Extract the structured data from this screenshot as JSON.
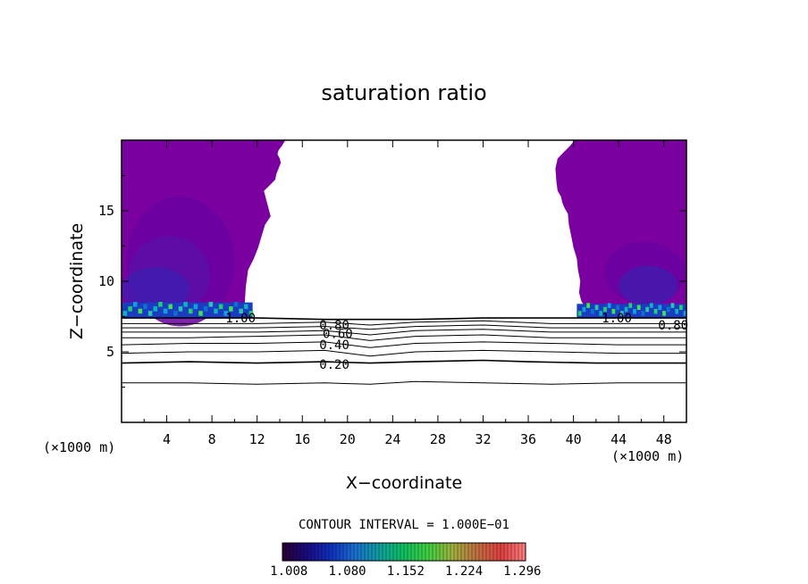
{
  "chart_data": {
    "type": "heatmap",
    "title": "saturation ratio",
    "xlabel": "X−coordinate",
    "ylabel": "Z−coordinate",
    "x_unit": "(×1000 m)",
    "xlim": [
      0,
      50
    ],
    "ylim": [
      0,
      20
    ],
    "x_ticks": [
      4,
      8,
      12,
      16,
      20,
      24,
      28,
      32,
      36,
      40,
      44,
      48
    ],
    "y_ticks": [
      5,
      10,
      15
    ],
    "contour_interval_text": "CONTOUR INTERVAL = 1.000E−01",
    "contour_lines": [
      {
        "level": 0.1,
        "x": [
          0,
          6,
          12,
          18,
          22,
          26,
          32,
          38,
          44,
          50
        ],
        "z": [
          2.8,
          2.8,
          2.7,
          2.8,
          2.7,
          2.9,
          2.8,
          2.7,
          2.8,
          2.8
        ]
      },
      {
        "level": 0.2,
        "x": [
          0,
          6,
          12,
          18,
          22,
          26,
          32,
          36,
          42,
          50
        ],
        "z": [
          4.2,
          4.3,
          4.2,
          4.3,
          4.2,
          4.3,
          4.4,
          4.3,
          4.2,
          4.2
        ]
      },
      {
        "level": 0.3,
        "x": [
          0,
          6,
          12,
          18,
          22,
          26,
          32,
          38,
          44,
          50
        ],
        "z": [
          4.9,
          5.0,
          5.0,
          5.1,
          4.7,
          5.0,
          5.1,
          5.0,
          4.9,
          4.9
        ]
      },
      {
        "level": 0.4,
        "x": [
          0,
          6,
          12,
          18,
          22,
          26,
          32,
          38,
          44,
          50
        ],
        "z": [
          5.5,
          5.6,
          5.6,
          5.7,
          5.3,
          5.6,
          5.7,
          5.6,
          5.5,
          5.5
        ]
      },
      {
        "level": 0.5,
        "x": [
          0,
          6,
          12,
          18,
          22,
          26,
          32,
          38,
          44,
          50
        ],
        "z": [
          6.0,
          6.0,
          6.1,
          6.2,
          5.8,
          6.1,
          6.2,
          6.0,
          6.0,
          6.0
        ]
      },
      {
        "level": 0.6,
        "x": [
          0,
          6,
          12,
          18,
          22,
          26,
          32,
          38,
          44,
          50
        ],
        "z": [
          6.4,
          6.4,
          6.4,
          6.5,
          6.2,
          6.5,
          6.6,
          6.4,
          6.4,
          6.4
        ]
      },
      {
        "level": 0.7,
        "x": [
          0,
          6,
          12,
          18,
          22,
          26,
          32,
          38,
          44,
          50
        ],
        "z": [
          6.7,
          6.7,
          6.7,
          6.8,
          6.6,
          6.8,
          6.9,
          6.7,
          6.7,
          6.7
        ]
      },
      {
        "level": 0.8,
        "x": [
          0,
          6,
          12,
          18,
          22,
          26,
          32,
          38,
          44,
          50
        ],
        "z": [
          7.0,
          7.0,
          7.0,
          7.1,
          6.9,
          7.1,
          7.2,
          7.0,
          7.0,
          7.0
        ]
      },
      {
        "level": 1.0,
        "x": [
          0,
          6,
          12,
          18,
          22,
          26,
          32,
          38,
          44,
          50
        ],
        "z": [
          7.4,
          7.4,
          7.4,
          7.3,
          7.3,
          7.3,
          7.4,
          7.4,
          7.4,
          7.4
        ]
      }
    ],
    "contour_labels": [
      {
        "text": "1.00",
        "x": 9.2,
        "z": 7.4
      },
      {
        "text": "0.80",
        "x": 17.5,
        "z": 6.9
      },
      {
        "text": "0.60",
        "x": 17.8,
        "z": 6.3
      },
      {
        "text": "0.40",
        "x": 17.5,
        "z": 5.5
      },
      {
        "text": "0.20",
        "x": 17.5,
        "z": 4.1
      },
      {
        "text": "1.00",
        "x": 42.5,
        "z": 7.4
      },
      {
        "text": "0.80",
        "x": 47.5,
        "z": 6.9
      }
    ],
    "supersaturated_region": {
      "left_boundary_x": [
        0,
        10.8,
        10.9,
        11.0,
        11.2,
        11.7,
        12.1,
        12.4,
        12.7,
        13.2,
        13.0,
        12.8,
        12.6,
        13.1,
        13.6,
        13.7,
        13.9,
        14.1,
        14.0,
        13.8,
        13.9,
        14.2,
        14.5,
        0
      ],
      "left_boundary_z": [
        7.4,
        7.4,
        8.4,
        9.6,
        10.8,
        11.6,
        12.4,
        13.2,
        14.0,
        14.6,
        15.2,
        15.8,
        16.4,
        16.8,
        17.2,
        17.6,
        18.0,
        18.4,
        18.7,
        19.0,
        19.3,
        19.6,
        20.0,
        20.0
      ],
      "right_boundary_x": [
        50,
        50,
        40.1,
        39.7,
        39.2,
        38.6,
        38.4,
        38.5,
        38.6,
        38.9,
        39.0,
        39.2,
        39.5,
        39.6,
        39.8,
        40.0,
        40.3,
        40.4,
        40.6,
        40.5,
        40.7,
        41.0,
        40.8,
        40.9,
        40.7,
        50
      ],
      "right_boundary_z": [
        7.4,
        20.0,
        20.0,
        19.6,
        19.2,
        18.7,
        18.0,
        17.0,
        16.4,
        16.0,
        15.6,
        15.2,
        14.8,
        14.0,
        13.2,
        12.4,
        11.6,
        10.8,
        10.0,
        9.2,
        8.6,
        8.2,
        7.8,
        7.5,
        7.4,
        7.4
      ],
      "background_color": "#7b00a0"
    },
    "colorbar": {
      "tick_labels": [
        "1.008",
        "1.080",
        "1.152",
        "1.224",
        "1.296"
      ],
      "range": [
        1.0,
        1.3
      ],
      "colors": [
        "#2a0030",
        "#1a0a80",
        "#1030c0",
        "#1a70d0",
        "#10a0a0",
        "#10c060",
        "#40d040",
        "#a0b040",
        "#c07040",
        "#e04040",
        "#ff8080"
      ]
    }
  }
}
